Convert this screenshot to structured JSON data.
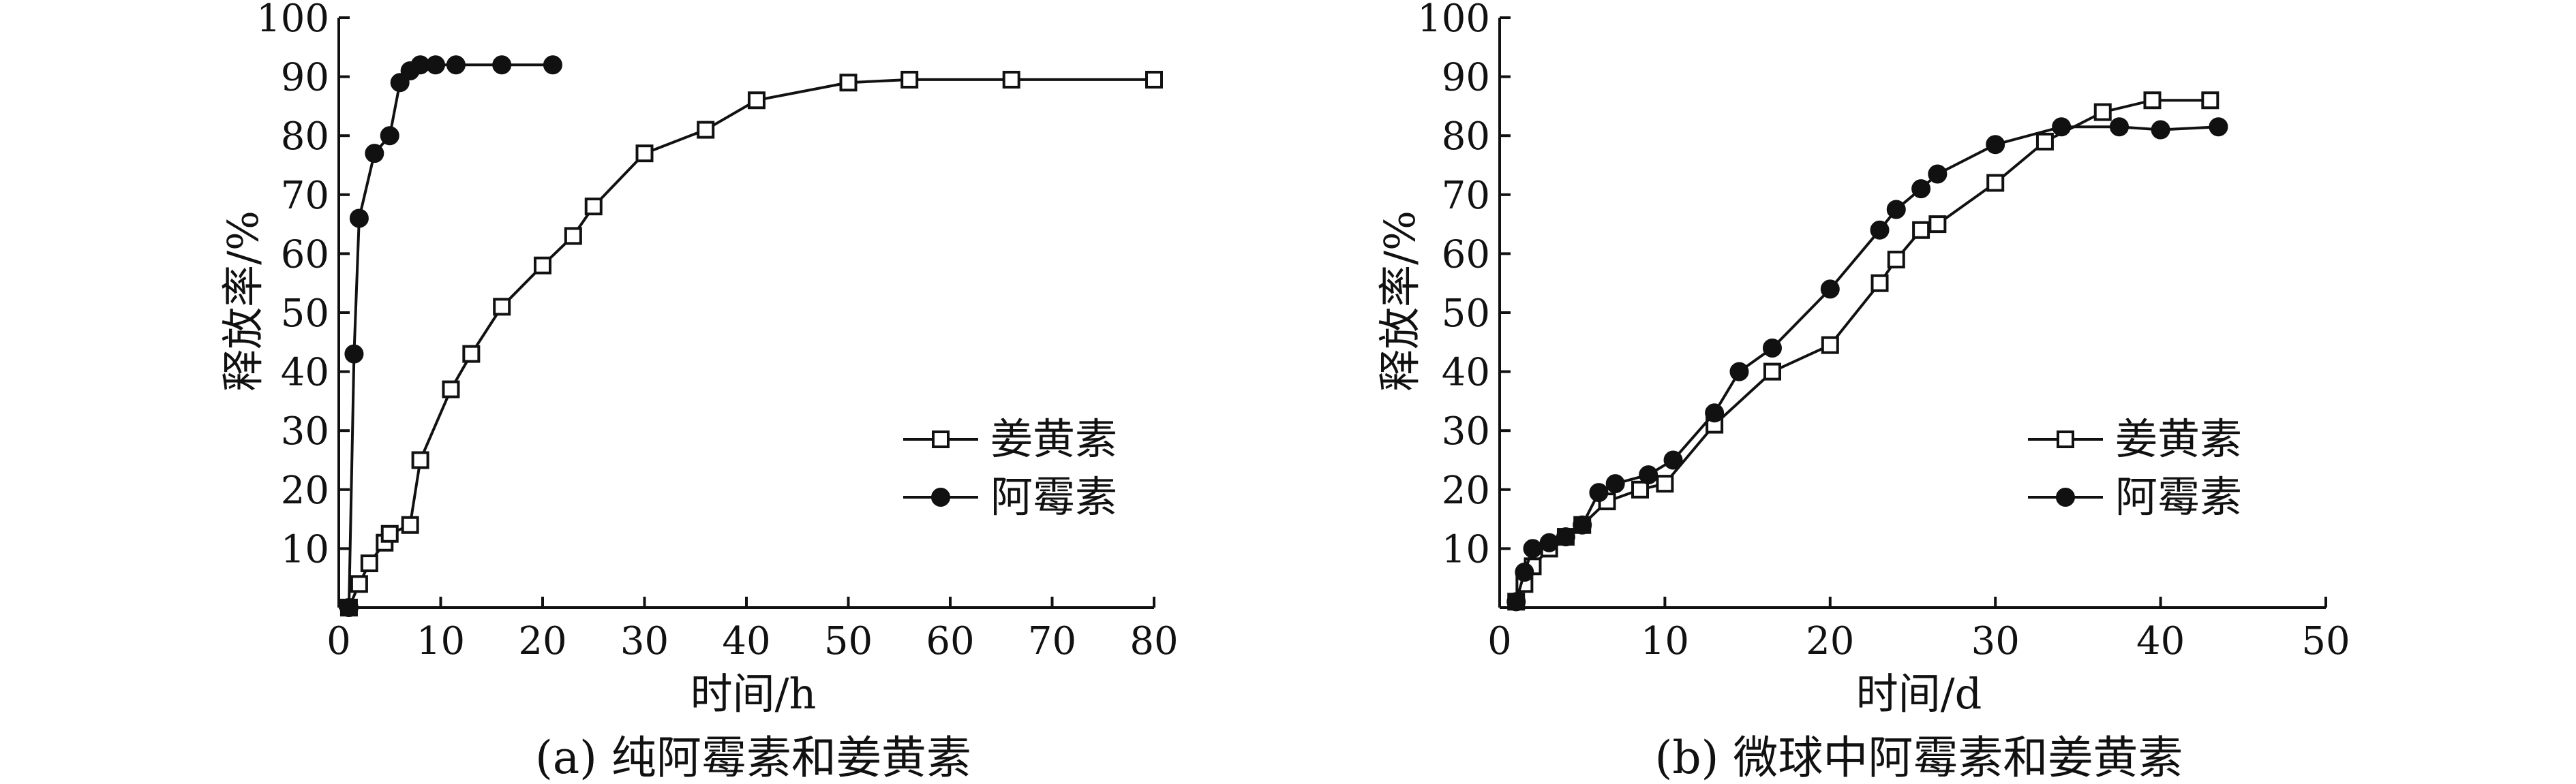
{
  "chart_data": [
    {
      "type": "line",
      "caption": "(a) 纯阿霉素和姜黄素",
      "xlabel": "时间/h",
      "ylabel": "释放率/%",
      "xlim": [
        0,
        80
      ],
      "ylim": [
        0,
        100
      ],
      "xticks": [
        0,
        10,
        20,
        30,
        40,
        50,
        60,
        70,
        80
      ],
      "yticks": [
        10,
        20,
        30,
        40,
        50,
        60,
        70,
        80,
        90,
        100
      ],
      "legend_position": "center-right",
      "series": [
        {
          "name": "姜黄素",
          "marker": "square-open",
          "x": [
            1,
            2,
            3,
            4.5,
            5,
            7,
            8,
            11,
            13,
            16,
            20,
            23,
            25,
            30,
            36,
            41,
            50,
            56,
            66,
            80
          ],
          "y": [
            0,
            4,
            7.5,
            11,
            12.5,
            14,
            25,
            37,
            43,
            51,
            58,
            63,
            68,
            77,
            81,
            86,
            89,
            89.5,
            89.5,
            89.5
          ]
        },
        {
          "name": "阿霉素",
          "marker": "circle-filled",
          "x": [
            1,
            1.5,
            2,
            3.5,
            5,
            6,
            7,
            8,
            9.5,
            11.5,
            16,
            21
          ],
          "y": [
            0,
            43,
            66,
            77,
            80,
            89,
            91,
            92,
            92,
            92,
            92,
            92
          ]
        }
      ]
    },
    {
      "type": "line",
      "caption": "(b) 微球中阿霉素和姜黄素",
      "xlabel": "时间/d",
      "ylabel": "释放率/%",
      "xlim": [
        0,
        50
      ],
      "ylim": [
        0,
        100
      ],
      "xticks": [
        0,
        10,
        20,
        30,
        40,
        50
      ],
      "yticks": [
        10,
        20,
        30,
        40,
        50,
        60,
        70,
        80,
        90,
        100
      ],
      "legend_position": "center-right",
      "series": [
        {
          "name": "姜黄素",
          "marker": "square-open",
          "x": [
            1,
            1.5,
            2,
            3,
            4,
            5,
            6.5,
            8.5,
            10,
            13,
            16.5,
            20,
            23,
            24,
            25.5,
            26.5,
            30,
            33,
            36.5,
            39.5,
            43
          ],
          "y": [
            1,
            4,
            7,
            10,
            12,
            14,
            18,
            20,
            21,
            31,
            40,
            44.5,
            55,
            59,
            64,
            65,
            72,
            79,
            84,
            86,
            86
          ]
        },
        {
          "name": "阿霉素",
          "marker": "circle-filled",
          "x": [
            1,
            1.5,
            2,
            3,
            4,
            5,
            6,
            7,
            9,
            10.5,
            13,
            14.5,
            16.5,
            20,
            23,
            24,
            25.5,
            26.5,
            30,
            34,
            37.5,
            40,
            43.5
          ],
          "y": [
            1,
            6,
            10,
            11,
            12,
            14,
            19.5,
            21,
            22.5,
            25,
            33,
            40,
            44,
            54,
            64,
            67.5,
            71,
            73.5,
            78.5,
            81.5,
            81.5,
            81,
            81.5
          ]
        }
      ]
    }
  ]
}
